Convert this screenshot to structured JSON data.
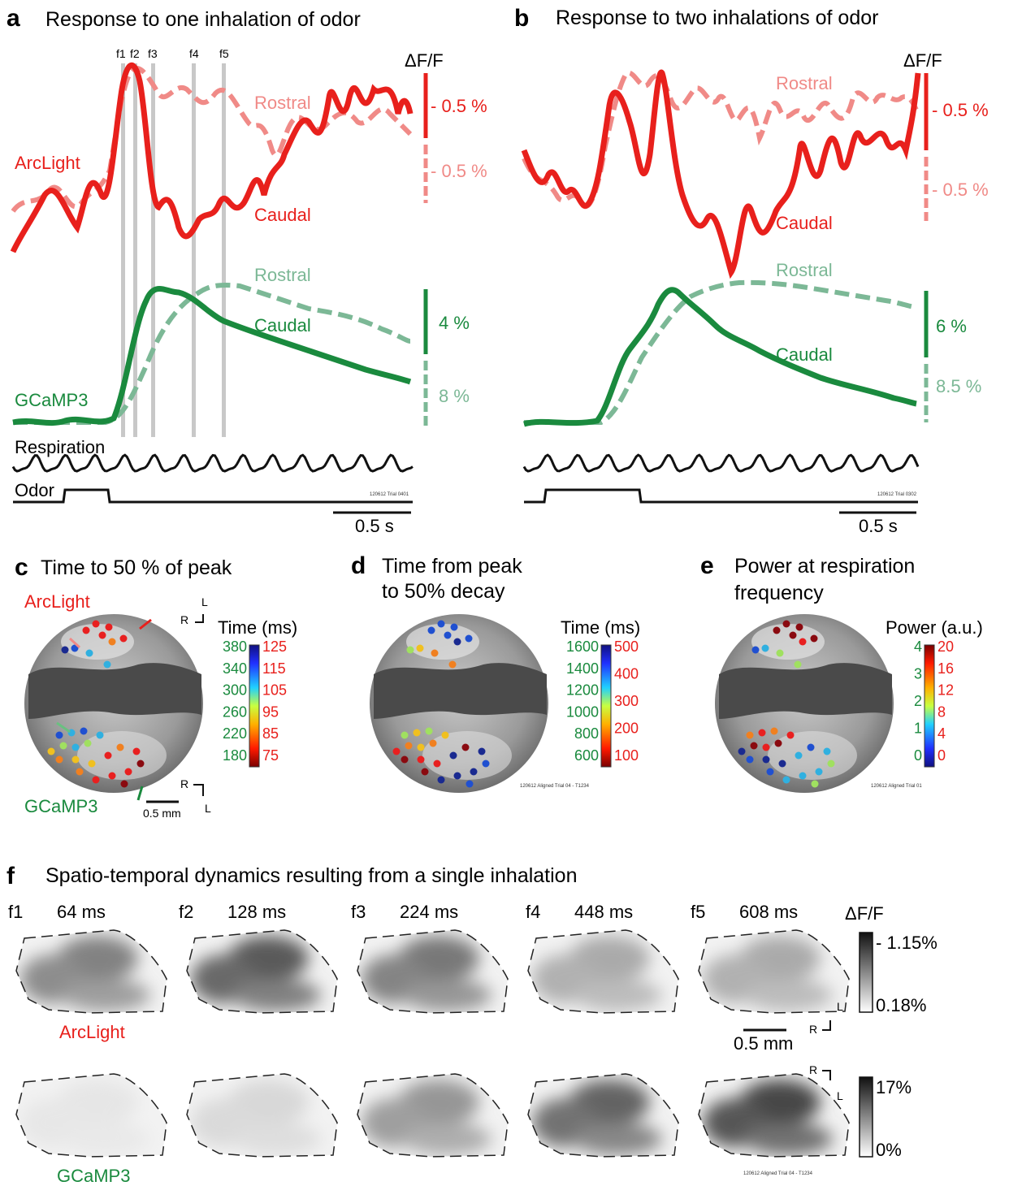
{
  "colors": {
    "red": "#e8201c",
    "pink": "#f08a87",
    "green": "#1a8a3e",
    "lgreen": "#7cb896",
    "gray": "#c8c8c8",
    "black": "#111111"
  },
  "panel_a": {
    "letter": "a",
    "title": "Response to one inhalation of odor",
    "dff": "ΔF/F",
    "frames": [
      "f1",
      "f2",
      "f3",
      "f4",
      "f5"
    ],
    "arclight": "ArcLight",
    "rostral": "Rostral",
    "caudal": "Caudal",
    "gcamp": "GCaMP3",
    "respiration": "Respiration",
    "odor": "Odor",
    "sb_red1": "- 0.5 %",
    "sb_red2": "- 0.5 %",
    "sb_g1": "4 %",
    "sb_g2": "8 %",
    "trial": "120612 Trial 0401",
    "time_sb": "0.5 s"
  },
  "panel_b": {
    "letter": "b",
    "title": "Response to two inhalations of odor",
    "dff": "ΔF/F",
    "rostral": "Rostral",
    "caudal": "Caudal",
    "rostral_g": "Rostral",
    "caudal_g": "Caudal",
    "sb_red1": "- 0.5 %",
    "sb_red2": "- 0.5 %",
    "sb_g1": "6 %",
    "sb_g2": "8.5 %",
    "trial": "120612 Trial 0302",
    "time_sb": "0.5 s"
  },
  "panel_c": {
    "letter": "c",
    "title": "Time to 50 % of peak",
    "arclight": "ArcLight",
    "gcamp": "GCaMP3",
    "cbar_title": "Time (ms)",
    "green_ticks": [
      "380",
      "340",
      "300",
      "260",
      "220",
      "180"
    ],
    "red_ticks": [
      "125",
      "115",
      "105",
      "95",
      "85",
      "75"
    ],
    "R": "R",
    "L": "L",
    "scale": "0.5 mm"
  },
  "panel_d": {
    "letter": "d",
    "title1": "Time from peak",
    "title2": "to 50% decay",
    "cbar_title": "Time (ms)",
    "green_ticks": [
      "1600",
      "1400",
      "1200",
      "1000",
      "800",
      "600"
    ],
    "red_ticks": [
      "500",
      "400",
      "300",
      "200",
      "100"
    ],
    "trial": "120612 Aligned Trial 04 - T1234"
  },
  "panel_e": {
    "letter": "e",
    "title1": "Power at respiration",
    "title2": "frequency",
    "cbar_title": "Power (a.u.)",
    "green_ticks": [
      "4",
      "3",
      "2",
      "1",
      "0"
    ],
    "red_ticks": [
      "20",
      "16",
      "12",
      "8",
      "4",
      "0"
    ],
    "trial": "120612 Aligned Trial 01"
  },
  "panel_f": {
    "letter": "f",
    "title": "Spatio-temporal dynamics resulting from a single inhalation",
    "frames": [
      {
        "id": "f1",
        "time": "64 ms"
      },
      {
        "id": "f2",
        "time": "128 ms"
      },
      {
        "id": "f3",
        "time": "224 ms"
      },
      {
        "id": "f4",
        "time": "448 ms"
      },
      {
        "id": "f5",
        "time": "608 ms"
      }
    ],
    "dff": "ΔF/F",
    "top_max": "- 1.15%",
    "top_min": "0.18%",
    "bot_max": "17%",
    "bot_min": "0%",
    "arclight": "ArcLight",
    "gcamp": "GCaMP3",
    "scale": "0.5 mm",
    "R": "R",
    "L": "L",
    "trial": "120612 Aligned Trial 04 - T1234"
  }
}
